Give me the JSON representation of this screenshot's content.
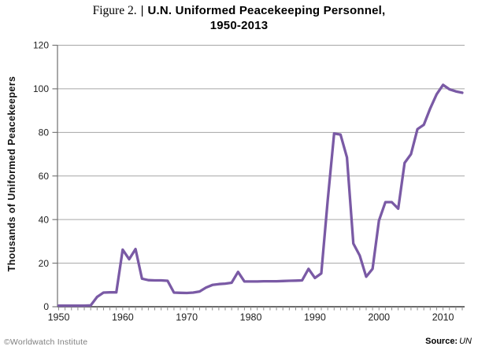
{
  "header": {
    "figure_label": "Figure 2.",
    "separator": "|",
    "title_line1": "U.N. Uniformed Peacekeeping Personnel,",
    "title_line2": "1950-2013"
  },
  "footer": {
    "copyright": "©Worldwatch Institute",
    "source_label": "Source:",
    "source_value": "UN"
  },
  "chart_data": {
    "type": "line",
    "title": "U.N. Uniformed Peacekeeping Personnel, 1950-2013",
    "xlabel": "",
    "ylabel": "Thousands of Uniformed Peacekeepers",
    "xlim": [
      1950,
      2013
    ],
    "ylim": [
      0,
      120
    ],
    "x_ticks": [
      1950,
      1960,
      1970,
      1980,
      1990,
      2000,
      2010
    ],
    "x_minor_tick_step": 1,
    "y_ticks": [
      0,
      20,
      40,
      60,
      80,
      100,
      120
    ],
    "grid": true,
    "legend": "none",
    "line_color": "#7a5aa5",
    "grid_color": "#a6a6a6",
    "axis_color": "#6e6e6e",
    "xaxis_color": "#3a3a3a",
    "series": [
      {
        "name": "U.N. uniformed peacekeeping personnel (thousands)",
        "x": [
          1950,
          1951,
          1952,
          1953,
          1954,
          1955,
          1956,
          1957,
          1958,
          1959,
          1960,
          1961,
          1962,
          1963,
          1964,
          1965,
          1966,
          1967,
          1968,
          1969,
          1970,
          1971,
          1972,
          1973,
          1974,
          1975,
          1976,
          1977,
          1978,
          1979,
          1980,
          1981,
          1982,
          1983,
          1984,
          1985,
          1986,
          1987,
          1988,
          1989,
          1990,
          1991,
          1992,
          1993,
          1994,
          1995,
          1996,
          1997,
          1998,
          1999,
          2000,
          2001,
          2002,
          2003,
          2004,
          2005,
          2006,
          2007,
          2008,
          2009,
          2010,
          2011,
          2012,
          2013
        ],
        "y": [
          0.5,
          0.5,
          0.5,
          0.5,
          0.5,
          0.6,
          4.5,
          6.5,
          6.6,
          6.6,
          26.2,
          21.8,
          26.5,
          12.9,
          12.2,
          12.1,
          12.1,
          11.9,
          6.5,
          6.4,
          6.3,
          6.5,
          7.0,
          8.8,
          10.0,
          10.4,
          10.6,
          11.0,
          16.0,
          11.6,
          11.6,
          11.6,
          11.7,
          11.7,
          11.7,
          11.8,
          11.9,
          12.0,
          12.1,
          17.4,
          13.2,
          15.3,
          49.0,
          79.5,
          79.0,
          68.5,
          29.0,
          23.5,
          13.8,
          17.4,
          39.5,
          48.0,
          48.0,
          45.0,
          66.0,
          70.0,
          81.5,
          83.5,
          91.0,
          97.5,
          101.8,
          99.8,
          98.8,
          98.2
        ]
      }
    ]
  }
}
